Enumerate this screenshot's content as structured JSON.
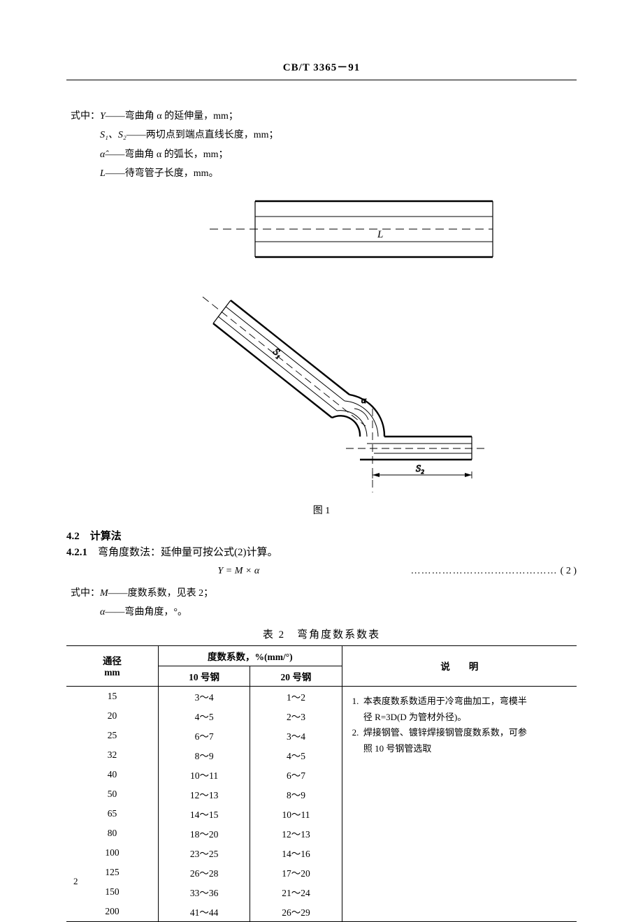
{
  "header": {
    "standard_code": "CB/T 3365－91"
  },
  "definitions": {
    "lead": "式中：",
    "items": [
      {
        "sym": "Y",
        "desc": "弯曲角 α 的延伸量，mm；"
      },
      {
        "sym": "S₁、S₂",
        "desc": "两切点到端点直线长度，mm；"
      },
      {
        "sym": "α̂",
        "desc": "弯曲角 α 的弧长，mm；"
      },
      {
        "sym": "L",
        "desc": "待弯管子长度，mm。"
      }
    ]
  },
  "figure1": {
    "label_L": "L",
    "label_S1": "S₁",
    "label_S2": "S₂",
    "label_alpha": "α",
    "caption": "图 1",
    "stroke": "#000000",
    "stroke_thick": 2.4,
    "stroke_thin": 1.2,
    "dash": "10 6"
  },
  "section42": {
    "num": "4.2",
    "title": "计算法"
  },
  "section421": {
    "num": "4.2.1",
    "title": "弯角度数法：延伸量可按公式(2)计算。"
  },
  "formula2": {
    "expr": "Y = M × α",
    "dots": "……………………………………",
    "num": "( 2 )"
  },
  "definitions2": {
    "lead": "式中：",
    "items": [
      {
        "sym": "M",
        "desc": "度数系数，见表 2；"
      },
      {
        "sym": "α",
        "desc": "弯曲角度，°。"
      }
    ]
  },
  "table2": {
    "caption": "表 2　弯角度数系数表",
    "col_diameter": "通径",
    "col_diameter_unit": "mm",
    "col_coef_group": "度数系数，%(mm/°)",
    "col_steel10": "10 号钢",
    "col_steel20": "20 号钢",
    "col_notes": "说　　明",
    "rows": [
      {
        "d": "15",
        "s10": "3～4",
        "s20": "1～2"
      },
      {
        "d": "20",
        "s10": "4～5",
        "s20": "2～3"
      },
      {
        "d": "25",
        "s10": "6～7",
        "s20": "3～4"
      },
      {
        "d": "32",
        "s10": "8～9",
        "s20": "4～5"
      },
      {
        "d": "40",
        "s10": "10～11",
        "s20": "6～7"
      },
      {
        "d": "50",
        "s10": "12～13",
        "s20": "8～9"
      },
      {
        "d": "65",
        "s10": "14～15",
        "s20": "10～11"
      },
      {
        "d": "80",
        "s10": "18～20",
        "s20": "12～13"
      },
      {
        "d": "100",
        "s10": "23～25",
        "s20": "14～16"
      },
      {
        "d": "125",
        "s10": "26～28",
        "s20": "17～20"
      },
      {
        "d": "150",
        "s10": "33～36",
        "s20": "21～24"
      },
      {
        "d": "200",
        "s10": "41～44",
        "s20": "26～29"
      }
    ],
    "notes": [
      {
        "n": "1.",
        "line1": "本表度数系数适用于冷弯曲加工，弯模半",
        "line2": "径 R=3D(D 为管材外径)。"
      },
      {
        "n": "2.",
        "line1": "焊接钢管、镀锌焊接钢管度数系数，可参",
        "line2": "照 10 号钢管选取"
      }
    ]
  },
  "page_number": "2"
}
